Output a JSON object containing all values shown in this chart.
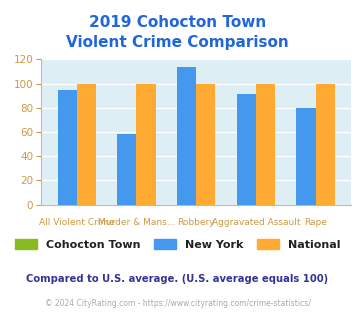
{
  "title_line1": "2019 Cohocton Town",
  "title_line2": "Violent Crime Comparison",
  "title_color": "#2266dd",
  "categories": [
    "All Violent Crime",
    "Murder & Mans...",
    "Robbery",
    "Aggravated Assault",
    "Rape"
  ],
  "cat_line1": [
    "",
    "Murder & Mans...",
    "",
    "Aggravated Assault",
    ""
  ],
  "cat_line2": [
    "All Violent Crime",
    "",
    "Robbery",
    "",
    "Rape"
  ],
  "newyork_values": [
    95,
    58,
    114,
    91,
    80
  ],
  "national_values": [
    100,
    100,
    100,
    100,
    100
  ],
  "cohocton_color": "#88bb22",
  "newyork_color": "#4499ee",
  "national_color": "#ffaa33",
  "plot_bg": "#ddeef5",
  "ylim": [
    0,
    120
  ],
  "yticks": [
    0,
    20,
    40,
    60,
    80,
    100,
    120
  ],
  "legend_labels": [
    "Cohocton Town",
    "New York",
    "National"
  ],
  "footnote1": "Compared to U.S. average. (U.S. average equals 100)",
  "footnote2": "© 2024 CityRating.com - https://www.cityrating.com/crime-statistics/",
  "footnote1_color": "#333399",
  "footnote2_color": "#aaaaaa",
  "tick_color": "#cc9944",
  "xlabel_color": "#cc9944",
  "bar_width": 0.32
}
